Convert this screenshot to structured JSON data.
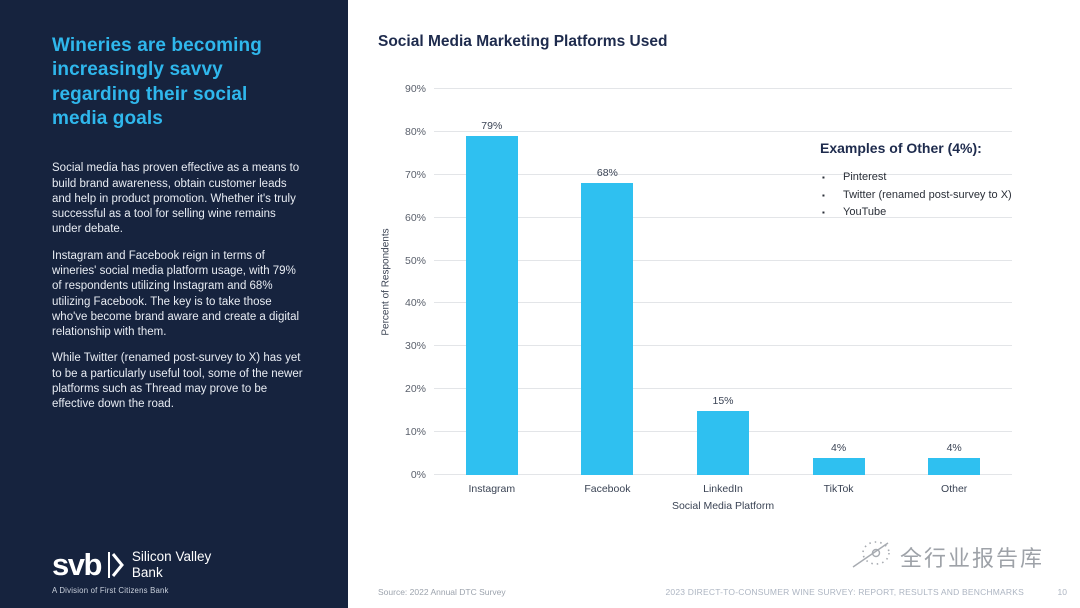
{
  "sidebar": {
    "heading": "Wineries are becoming increasingly savvy regarding their social media goals",
    "paragraphs": [
      "Social media has proven effective as a means to build brand awareness, obtain customer leads and help in product promotion. Whether it's truly successful as a tool for selling wine remains under debate.",
      "Instagram and Facebook reign in terms of wineries' social media platform usage, with 79% of respondents utilizing Instagram and 68% utilizing Facebook. The key is to take those who've become brand aware and create a digital relationship with them.",
      "While Twitter (renamed post-survey to X) has yet to be a particularly useful tool, some of the newer platforms such as Thread may prove to be effective down the road."
    ],
    "logo": {
      "mark": "svb",
      "name_line1": "Silicon Valley",
      "name_line2": "Bank",
      "tagline": "A Division of First Citizens Bank"
    }
  },
  "main": {
    "chart_title": "Social Media Marketing Platforms Used",
    "annotation": {
      "heading": "Examples of Other (4%):",
      "items": [
        "Pinterest",
        "Twitter (renamed post-survey to X)",
        "YouTube"
      ]
    },
    "footer": {
      "source": "Source: 2022 Annual DTC Survey",
      "report_title": "2023 DIRECT-TO-CONSUMER WINE SURVEY: REPORT, RESULTS AND BENCHMARKS",
      "page_number": "10"
    },
    "watermark": "全行业报告库"
  },
  "chart_data": {
    "type": "bar",
    "title": "Social Media Marketing Platforms Used",
    "categories": [
      "Instagram",
      "Facebook",
      "LinkedIn",
      "TikTok",
      "Other"
    ],
    "values": [
      79,
      68,
      15,
      4,
      4
    ],
    "value_labels": [
      "79%",
      "68%",
      "15%",
      "4%",
      "4%"
    ],
    "xlabel": "Social Media Platform",
    "ylabel": "Percent of Respondents",
    "ylim": [
      0,
      90
    ],
    "yticks": [
      0,
      10,
      20,
      30,
      40,
      50,
      60,
      70,
      80,
      90
    ],
    "ytick_labels": [
      "0%",
      "10%",
      "20%",
      "30%",
      "40%",
      "50%",
      "60%",
      "70%",
      "80%",
      "90%"
    ],
    "grid": true,
    "legend": false,
    "bar_color": "#2FC0F0"
  },
  "colors": {
    "sidebar_bg": "#16233E",
    "accent_cyan": "#2FB7EC",
    "navy_text": "#1E2B4D",
    "bar": "#2FC0F0",
    "gridline": "#E3E5E8"
  }
}
